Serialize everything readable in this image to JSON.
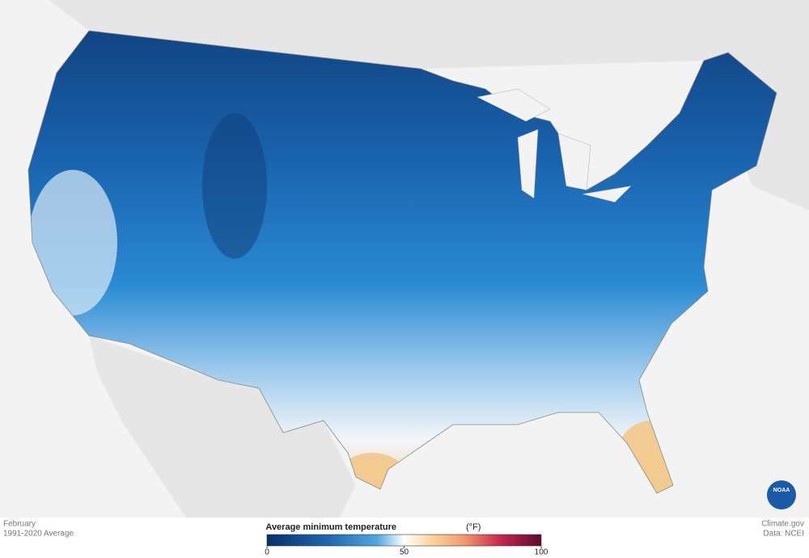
{
  "footer_left": {
    "month": "February",
    "period": "1991-2020 Average"
  },
  "legend": {
    "title": "Average minimum temperature",
    "unit": "(°F)",
    "lim": [
      0,
      100
    ],
    "ticks": [
      0,
      50,
      100
    ]
  },
  "footer_right": {
    "source": "Climate.gov",
    "data": "Data: NCEI"
  },
  "logo": "NOAA"
}
